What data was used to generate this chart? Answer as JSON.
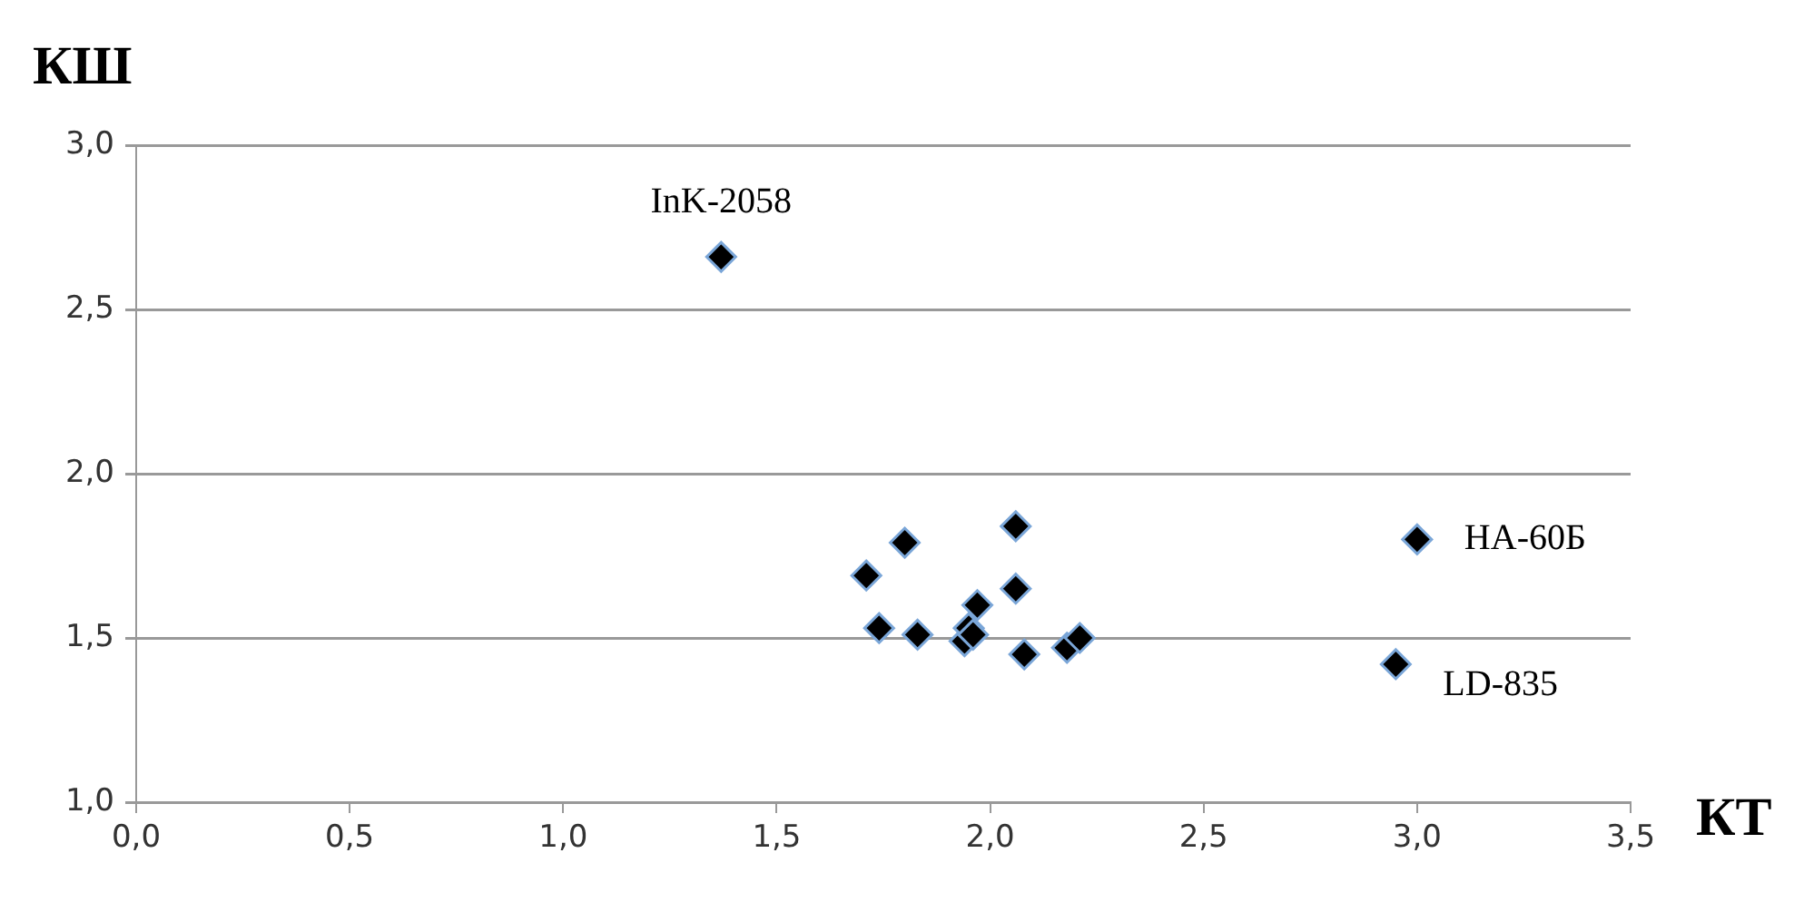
{
  "chart_data": {
    "type": "scatter",
    "xlabel": "КТ",
    "ylabel": "КШ",
    "series": [
      {
        "color": "#000000",
        "x": [
          1.37,
          1.71,
          1.74,
          1.8,
          1.83,
          1.94,
          1.95,
          1.97,
          1.96,
          2.06,
          2.06,
          2.08,
          2.18,
          2.21,
          3.0,
          2.95
        ],
        "values": [
          2.66,
          1.69,
          1.53,
          1.79,
          1.51,
          1.49,
          1.53,
          1.6,
          1.51,
          1.84,
          1.65,
          1.45,
          1.47,
          1.5,
          1.8,
          1.42
        ]
      }
    ],
    "xlim": [
      0,
      3.5
    ],
    "ylim": [
      1,
      3
    ],
    "xticks": [
      {
        "value": 0,
        "label": "0,0"
      },
      {
        "value": 0.5,
        "label": "0,5"
      },
      {
        "value": 1,
        "label": "1,0"
      },
      {
        "value": 1.5,
        "label": "1,5"
      },
      {
        "value": 2,
        "label": "2,0"
      },
      {
        "value": 2.5,
        "label": "2,5"
      },
      {
        "value": 3,
        "label": "3,0"
      },
      {
        "value": 3.5,
        "label": "3,5"
      }
    ],
    "yticks": [
      {
        "value": 1,
        "label": "1,0"
      },
      {
        "value": 1.5,
        "label": "1,5"
      },
      {
        "value": 2,
        "label": "2,0"
      },
      {
        "value": 2.5,
        "label": "2,5"
      },
      {
        "value": 3,
        "label": "3,0"
      }
    ],
    "grid": "y",
    "legend": false,
    "marker": "diamond",
    "annotations": [
      {
        "text": "InK-2058",
        "x": 1.37,
        "y": 2.66
      },
      {
        "text": "НА-60Б",
        "x": 3.0,
        "y": 1.8
      },
      {
        "text": "LD-835",
        "x": 2.95,
        "y": 1.42
      }
    ]
  }
}
